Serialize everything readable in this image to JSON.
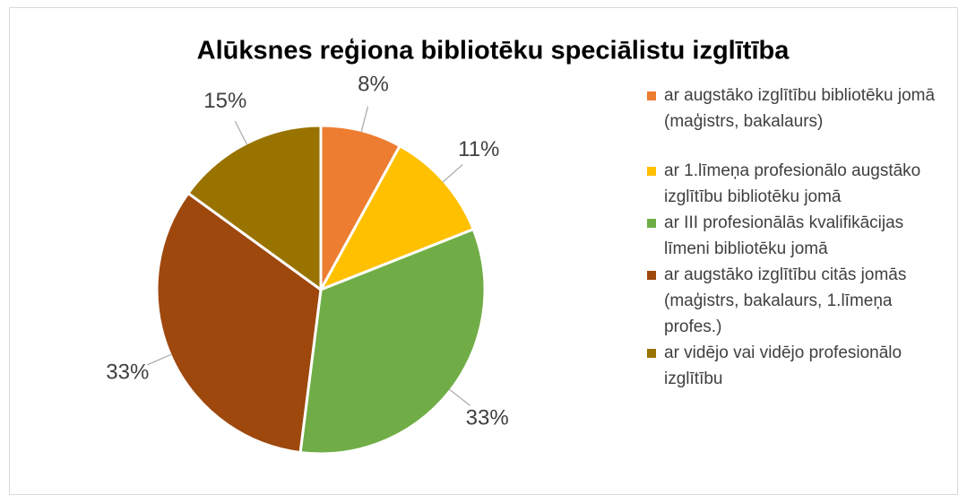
{
  "chart_data": {
    "type": "pie",
    "title": "Alūksnes reģiona bibliotēku speciālistu izglītība",
    "categories": [
      "ar augstāko izglītību bibliotēku jomā (maģistrs, bakalaurs)",
      "ar 1.līmeņa profesionālo augstāko izglītību bibliotēku jomā",
      "ar III profesionālās kvalifikācijas līmeni bibliotēku jomā",
      "ar augstāko izglītību citās jomās (maģistrs, bakalaurs, 1.līmeņa profes.)",
      "ar vidējo vai vidējo profesionālo izglītību"
    ],
    "values": [
      8,
      11,
      33,
      33,
      15
    ],
    "value_labels": [
      "8%",
      "11%",
      "33%",
      "33%",
      "15%"
    ],
    "colors": [
      "#ED7D31",
      "#FFC000",
      "#70AD47",
      "#9E480E",
      "#997300"
    ],
    "legend": "right"
  }
}
